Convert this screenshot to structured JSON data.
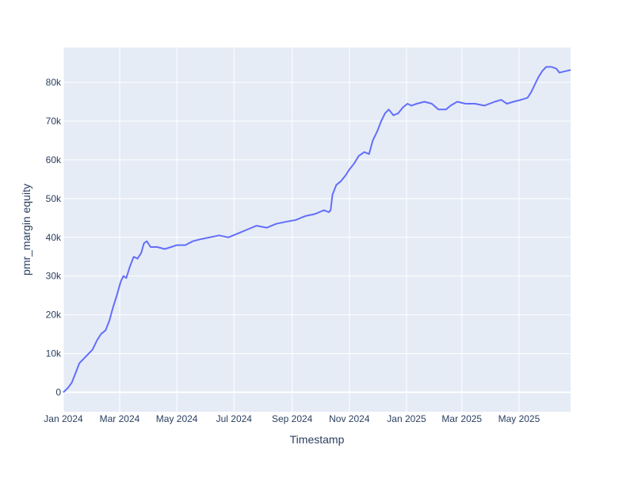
{
  "chart_data": {
    "type": "line",
    "title": "",
    "xlabel": "Timestamp",
    "ylabel": "pmr_margin equity",
    "x_ticks": [
      "Jan 2024",
      "Mar 2024",
      "May 2024",
      "Jul 2024",
      "Sep 2024",
      "Nov 2024",
      "Jan 2025",
      "Mar 2025",
      "May 2025"
    ],
    "y_ticks": [
      "0",
      "10k",
      "20k",
      "30k",
      "40k",
      "50k",
      "60k",
      "70k",
      "80k"
    ],
    "y_tick_values": [
      0,
      10000,
      20000,
      30000,
      40000,
      50000,
      60000,
      70000,
      80000
    ],
    "ylim": [
      -5000,
      89000
    ],
    "xlim": [
      "2024-01-01",
      "2025-06-25"
    ],
    "grid": true,
    "series": [
      {
        "color": "#636efa",
        "points": [
          [
            "2024-01-01",
            0
          ],
          [
            "2024-01-06",
            1200
          ],
          [
            "2024-01-10",
            2500
          ],
          [
            "2024-01-14",
            5000
          ],
          [
            "2024-01-18",
            7500
          ],
          [
            "2024-01-22",
            8500
          ],
          [
            "2024-01-26",
            9500
          ],
          [
            "2024-02-01",
            11000
          ],
          [
            "2024-02-06",
            13500
          ],
          [
            "2024-02-10",
            15000
          ],
          [
            "2024-02-15",
            16000
          ],
          [
            "2024-02-19",
            18500
          ],
          [
            "2024-02-23",
            22000
          ],
          [
            "2024-02-27",
            25000
          ],
          [
            "2024-03-02",
            28500
          ],
          [
            "2024-03-05",
            30000
          ],
          [
            "2024-03-08",
            29500
          ],
          [
            "2024-03-12",
            32500
          ],
          [
            "2024-03-16",
            35000
          ],
          [
            "2024-03-20",
            34500
          ],
          [
            "2024-03-24",
            36000
          ],
          [
            "2024-03-27",
            38500
          ],
          [
            "2024-03-30",
            39000
          ],
          [
            "2024-04-03",
            37500
          ],
          [
            "2024-04-10",
            37500
          ],
          [
            "2024-04-18",
            37000
          ],
          [
            "2024-04-25",
            37500
          ],
          [
            "2024-05-01",
            38000
          ],
          [
            "2024-05-10",
            38000
          ],
          [
            "2024-05-18",
            39000
          ],
          [
            "2024-05-26",
            39500
          ],
          [
            "2024-06-05",
            40000
          ],
          [
            "2024-06-15",
            40500
          ],
          [
            "2024-06-25",
            40000
          ],
          [
            "2024-07-05",
            41000
          ],
          [
            "2024-07-15",
            42000
          ],
          [
            "2024-07-25",
            43000
          ],
          [
            "2024-08-05",
            42500
          ],
          [
            "2024-08-15",
            43500
          ],
          [
            "2024-08-25",
            44000
          ],
          [
            "2024-09-05",
            44500
          ],
          [
            "2024-09-15",
            45500
          ],
          [
            "2024-09-25",
            46000
          ],
          [
            "2024-10-05",
            47000
          ],
          [
            "2024-10-10",
            46500
          ],
          [
            "2024-10-12",
            47000
          ],
          [
            "2024-10-14",
            51000
          ],
          [
            "2024-10-18",
            53500
          ],
          [
            "2024-10-23",
            54500
          ],
          [
            "2024-10-28",
            56000
          ],
          [
            "2024-11-01",
            57500
          ],
          [
            "2024-11-06",
            59000
          ],
          [
            "2024-11-11",
            61000
          ],
          [
            "2024-11-17",
            62000
          ],
          [
            "2024-11-22",
            61500
          ],
          [
            "2024-11-26",
            65000
          ],
          [
            "2024-12-01",
            67500
          ],
          [
            "2024-12-05",
            70000
          ],
          [
            "2024-12-09",
            72000
          ],
          [
            "2024-12-13",
            73000
          ],
          [
            "2024-12-18",
            71500
          ],
          [
            "2024-12-23",
            72000
          ],
          [
            "2024-12-28",
            73500
          ],
          [
            "2025-01-02",
            74500
          ],
          [
            "2025-01-06",
            74000
          ],
          [
            "2025-01-12",
            74500
          ],
          [
            "2025-01-20",
            75000
          ],
          [
            "2025-01-28",
            74500
          ],
          [
            "2025-02-04",
            73000
          ],
          [
            "2025-02-12",
            73000
          ],
          [
            "2025-02-17",
            74000
          ],
          [
            "2025-02-24",
            75000
          ],
          [
            "2025-03-05",
            74500
          ],
          [
            "2025-03-15",
            74500
          ],
          [
            "2025-03-25",
            74000
          ],
          [
            "2025-04-05",
            75000
          ],
          [
            "2025-04-12",
            75500
          ],
          [
            "2025-04-18",
            74500
          ],
          [
            "2025-04-25",
            75000
          ],
          [
            "2025-05-03",
            75500
          ],
          [
            "2025-05-10",
            76000
          ],
          [
            "2025-05-14",
            77500
          ],
          [
            "2025-05-18",
            79500
          ],
          [
            "2025-05-22",
            81500
          ],
          [
            "2025-05-26",
            83000
          ],
          [
            "2025-05-30",
            84000
          ],
          [
            "2025-06-05",
            84000
          ],
          [
            "2025-06-10",
            83500
          ],
          [
            "2025-06-13",
            82500
          ],
          [
            "2025-06-18",
            82800
          ],
          [
            "2025-06-25",
            83200
          ]
        ]
      }
    ]
  }
}
